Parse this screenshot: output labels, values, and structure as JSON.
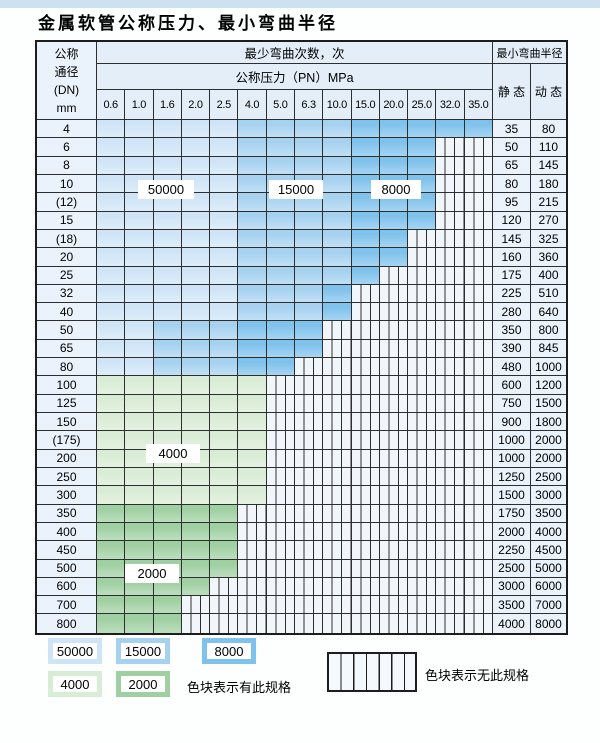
{
  "page": {
    "title": "金属软管公称压力、最小弯曲半径"
  },
  "table": {
    "header": {
      "dn_lines": [
        "公称",
        "通径",
        "(DN)",
        "mm"
      ],
      "bend_cycles": "最少弯曲次数，次",
      "pressure": "公称压力（PN）MPa",
      "bend_radius": "最小弯曲半径",
      "static": "静 态",
      "dynamic": "动 态",
      "pressures": [
        "0.6",
        "1.0",
        "1.6",
        "2.0",
        "2.5",
        "4.0",
        "5.0",
        "6.3",
        "10.0",
        "15.0",
        "20.0",
        "25.0",
        "32.0",
        "35.0"
      ]
    },
    "rows": [
      {
        "dn": "4",
        "static": "35",
        "dynamic": "80",
        "cells": [
          "b1",
          "b1",
          "b1",
          "b1",
          "b1",
          "b2",
          "b2",
          "b2",
          "b2",
          "b3",
          "b3",
          "b3",
          "b3",
          "b3"
        ]
      },
      {
        "dn": "6",
        "static": "50",
        "dynamic": "110",
        "cells": [
          "b1",
          "b1",
          "b1",
          "b1",
          "b1",
          "b2",
          "b2",
          "b2",
          "b2",
          "b3",
          "b3",
          "b3",
          "h",
          "h"
        ]
      },
      {
        "dn": "8",
        "static": "65",
        "dynamic": "145",
        "cells": [
          "b1",
          "b1",
          "b1",
          "b1",
          "b1",
          "b2",
          "b2",
          "b2",
          "b2",
          "b3",
          "b3",
          "b3",
          "h",
          "h"
        ]
      },
      {
        "dn": "10",
        "static": "80",
        "dynamic": "180",
        "cells": [
          "b1",
          "b1",
          "b1",
          "b1",
          "b1",
          "b2",
          "b2",
          "b2",
          "b2",
          "b3",
          "b3",
          "b3",
          "h",
          "h"
        ]
      },
      {
        "dn": "(12)",
        "static": "95",
        "dynamic": "215",
        "cells": [
          "b1",
          "b1",
          "b1",
          "b1",
          "b1",
          "b2",
          "b2",
          "b2",
          "b2",
          "b3",
          "b3",
          "b3",
          "h",
          "h"
        ]
      },
      {
        "dn": "15",
        "static": "120",
        "dynamic": "270",
        "cells": [
          "b1",
          "b1",
          "b1",
          "b1",
          "b1",
          "b2",
          "b2",
          "b2",
          "b2",
          "b3",
          "b3",
          "b3",
          "h",
          "h"
        ]
      },
      {
        "dn": "(18)",
        "static": "145",
        "dynamic": "325",
        "cells": [
          "b1",
          "b1",
          "b1",
          "b1",
          "b1",
          "b2",
          "b2",
          "b2",
          "b2",
          "b3",
          "b3",
          "h",
          "h",
          "h"
        ]
      },
      {
        "dn": "20",
        "static": "160",
        "dynamic": "360",
        "cells": [
          "b1",
          "b1",
          "b1",
          "b1",
          "b1",
          "b2",
          "b2",
          "b2",
          "b2",
          "b3",
          "b3",
          "h",
          "h",
          "h"
        ]
      },
      {
        "dn": "25",
        "static": "175",
        "dynamic": "400",
        "cells": [
          "b1",
          "b1",
          "b1",
          "b1",
          "b1",
          "b2",
          "b2",
          "b2",
          "b2",
          "b3",
          "h",
          "h",
          "h",
          "h"
        ]
      },
      {
        "dn": "32",
        "static": "225",
        "dynamic": "510",
        "cells": [
          "b1",
          "b1",
          "b1",
          "b1",
          "b1",
          "b2",
          "b2",
          "b2",
          "b3",
          "h",
          "h",
          "h",
          "h",
          "h"
        ]
      },
      {
        "dn": "40",
        "static": "280",
        "dynamic": "640",
        "cells": [
          "b1",
          "b1",
          "b1",
          "b1",
          "b1",
          "b2",
          "b2",
          "b2",
          "b3",
          "h",
          "h",
          "h",
          "h",
          "h"
        ]
      },
      {
        "dn": "50",
        "static": "350",
        "dynamic": "800",
        "cells": [
          "b1",
          "b1",
          "b2",
          "b2",
          "b2",
          "b3",
          "b3",
          "b3",
          "h",
          "h",
          "h",
          "h",
          "h",
          "h"
        ]
      },
      {
        "dn": "65",
        "static": "390",
        "dynamic": "845",
        "cells": [
          "b1",
          "b1",
          "b2",
          "b2",
          "b2",
          "b3",
          "b3",
          "b3",
          "h",
          "h",
          "h",
          "h",
          "h",
          "h"
        ]
      },
      {
        "dn": "80",
        "static": "480",
        "dynamic": "1000",
        "cells": [
          "b1",
          "b1",
          "b2",
          "b2",
          "b2",
          "b3",
          "b3",
          "h",
          "h",
          "h",
          "h",
          "h",
          "h",
          "h"
        ]
      },
      {
        "dn": "100",
        "static": "600",
        "dynamic": "1200",
        "cells": [
          "g1",
          "g1",
          "g1",
          "g1",
          "g1",
          "g1",
          "h",
          "h",
          "h",
          "h",
          "h",
          "h",
          "h",
          "h"
        ]
      },
      {
        "dn": "125",
        "static": "750",
        "dynamic": "1500",
        "cells": [
          "g1",
          "g1",
          "g1",
          "g1",
          "g1",
          "g1",
          "h",
          "h",
          "h",
          "h",
          "h",
          "h",
          "h",
          "h"
        ]
      },
      {
        "dn": "150",
        "static": "900",
        "dynamic": "1800",
        "cells": [
          "g1",
          "g1",
          "g1",
          "g1",
          "g1",
          "g1",
          "h",
          "h",
          "h",
          "h",
          "h",
          "h",
          "h",
          "h"
        ]
      },
      {
        "dn": "(175)",
        "static": "1000",
        "dynamic": "2000",
        "cells": [
          "g1",
          "g1",
          "g1",
          "g1",
          "g1",
          "g1",
          "h",
          "h",
          "h",
          "h",
          "h",
          "h",
          "h",
          "h"
        ]
      },
      {
        "dn": "200",
        "static": "1000",
        "dynamic": "2000",
        "cells": [
          "g1",
          "g1",
          "g1",
          "g1",
          "g1",
          "g1",
          "h",
          "h",
          "h",
          "h",
          "h",
          "h",
          "h",
          "h"
        ]
      },
      {
        "dn": "250",
        "static": "1250",
        "dynamic": "2500",
        "cells": [
          "g1",
          "g1",
          "g1",
          "g1",
          "g1",
          "g1",
          "h",
          "h",
          "h",
          "h",
          "h",
          "h",
          "h",
          "h"
        ]
      },
      {
        "dn": "300",
        "static": "1500",
        "dynamic": "3000",
        "cells": [
          "g1",
          "g1",
          "g1",
          "g1",
          "g1",
          "g1",
          "h",
          "h",
          "h",
          "h",
          "h",
          "h",
          "h",
          "h"
        ]
      },
      {
        "dn": "350",
        "static": "1750",
        "dynamic": "3500",
        "cells": [
          "g2",
          "g2",
          "g2",
          "g2",
          "g2",
          "h",
          "h",
          "h",
          "h",
          "h",
          "h",
          "h",
          "h",
          "h"
        ]
      },
      {
        "dn": "400",
        "static": "2000",
        "dynamic": "4000",
        "cells": [
          "g2",
          "g2",
          "g2",
          "g2",
          "g2",
          "h",
          "h",
          "h",
          "h",
          "h",
          "h",
          "h",
          "h",
          "h"
        ]
      },
      {
        "dn": "450",
        "static": "2250",
        "dynamic": "4500",
        "cells": [
          "g2",
          "g2",
          "g2",
          "g2",
          "g2",
          "h",
          "h",
          "h",
          "h",
          "h",
          "h",
          "h",
          "h",
          "h"
        ]
      },
      {
        "dn": "500",
        "static": "2500",
        "dynamic": "5000",
        "cells": [
          "g2",
          "g2",
          "g2",
          "g2",
          "g2",
          "h",
          "h",
          "h",
          "h",
          "h",
          "h",
          "h",
          "h",
          "h"
        ]
      },
      {
        "dn": "600",
        "static": "3000",
        "dynamic": "6000",
        "cells": [
          "g2",
          "g2",
          "g2",
          "g2",
          "h",
          "h",
          "h",
          "h",
          "h",
          "h",
          "h",
          "h",
          "h",
          "h"
        ]
      },
      {
        "dn": "700",
        "static": "3500",
        "dynamic": "7000",
        "cells": [
          "g2",
          "g2",
          "g2",
          "h",
          "h",
          "h",
          "h",
          "h",
          "h",
          "h",
          "h",
          "h",
          "h",
          "h"
        ]
      },
      {
        "dn": "800",
        "static": "4000",
        "dynamic": "8000",
        "cells": [
          "g2",
          "g2",
          "g2",
          "h",
          "h",
          "h",
          "h",
          "h",
          "h",
          "h",
          "h",
          "h",
          "h",
          "h"
        ]
      }
    ]
  },
  "zone_labels": [
    {
      "text": "50000"
    },
    {
      "text": "15000"
    },
    {
      "text": "8000"
    },
    {
      "text": "4000"
    },
    {
      "text": "2000"
    }
  ],
  "legend": {
    "items": [
      {
        "value": "50000",
        "color_key": "zone_50000"
      },
      {
        "value": "15000",
        "color_key": "zone_15000"
      },
      {
        "value": "8000",
        "color_key": "zone_8000"
      },
      {
        "value": "4000",
        "color_key": "zone_4000"
      },
      {
        "value": "2000",
        "color_key": "zone_2000"
      }
    ],
    "has_spec_text": "色块表示有此规格",
    "no_spec_text": "色块表示无此规格"
  },
  "colors": {
    "zone_50000": "#cfe5f7",
    "zone_15000": "#a6d2f0",
    "zone_8000": "#7fc2ec",
    "zone_4000": "#d9ecd5",
    "zone_2000": "#9fd0a2",
    "hatch_bg": "#f1f6fb",
    "grid_line": "#2e2e2e",
    "header_bg": "#e3eef8",
    "label_bg": "#eaf2fb",
    "top_band": "#cde1f0"
  }
}
